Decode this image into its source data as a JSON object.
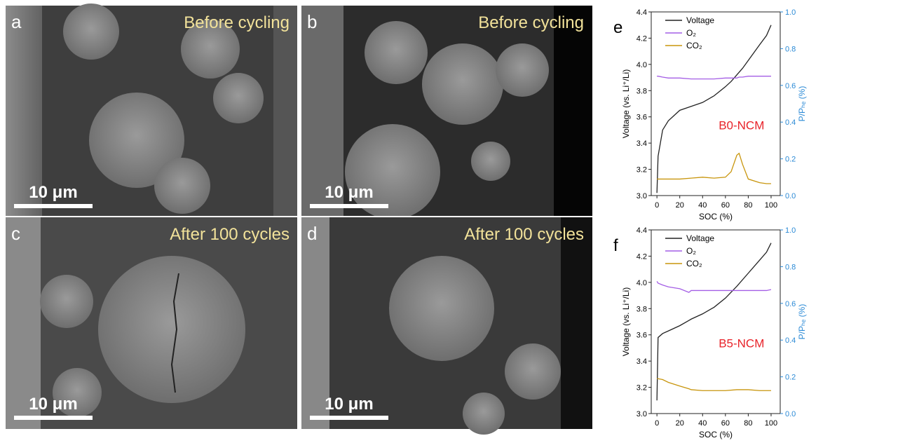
{
  "images": [
    {
      "label": "a",
      "caption": "Before cycling",
      "scale_bar": "10 μm"
    },
    {
      "label": "b",
      "caption": "Before cycling",
      "scale_bar": "10 μm"
    },
    {
      "label": "c",
      "caption": "After 100 cycles",
      "scale_bar": "10 μm"
    },
    {
      "label": "d",
      "caption": "After 100 cycles",
      "scale_bar": "10 μm"
    }
  ],
  "chart_data": [
    {
      "type": "line",
      "panel": "e",
      "annotation": "B0-NCM",
      "xlabel": "SOC (%)",
      "ylabel": "Voltage (vs. Li⁺/Li)",
      "y2label": "P/Pₕₑ (%)",
      "legend": "upper left",
      "x": [
        0,
        1,
        5,
        10,
        20,
        30,
        40,
        50,
        60,
        65,
        70,
        72,
        75,
        80,
        90,
        96,
        100
      ],
      "series": [
        {
          "name": "Voltage",
          "color": "#222222",
          "values": [
            3.02,
            3.3,
            3.5,
            3.57,
            3.65,
            3.68,
            3.71,
            3.76,
            3.83,
            3.87,
            3.92,
            3.94,
            3.97,
            4.03,
            4.15,
            4.22,
            4.3
          ]
        },
        {
          "name": "O₂",
          "color": "#a45ee5",
          "axis": "y2",
          "values": [
            0.65,
            0.65,
            0.645,
            0.64,
            0.64,
            0.635,
            0.635,
            0.635,
            0.64,
            0.64,
            0.64,
            0.645,
            0.645,
            0.65,
            0.65,
            0.65,
            0.65
          ]
        },
        {
          "name": "CO₂",
          "color": "#c8950c",
          "axis": "y2",
          "values": [
            0.09,
            0.09,
            0.09,
            0.09,
            0.09,
            0.095,
            0.1,
            0.095,
            0.1,
            0.13,
            0.22,
            0.23,
            0.17,
            0.09,
            0.07,
            0.065,
            0.065
          ]
        }
      ],
      "xlim": [
        -5,
        108
      ],
      "xticks": [
        0,
        20,
        40,
        60,
        80,
        100
      ],
      "ylim": [
        3.0,
        4.4
      ],
      "yticks": [
        {
          "value": 3.0,
          "label": "3.0"
        },
        3.2,
        3.4,
        3.6,
        3.8,
        {
          "value": 4.0,
          "label": "4.0"
        },
        4.2,
        4.4
      ],
      "y2lim": [
        0,
        1
      ],
      "y2ticks": [
        {
          "value": 0,
          "label": "0.0"
        },
        0.2,
        0.4,
        0.6,
        0.8,
        {
          "value": 1,
          "label": "1.0"
        }
      ],
      "y2color": "#2b8ad6"
    },
    {
      "type": "line",
      "panel": "f",
      "annotation": "B5-NCM",
      "xlabel": "SOC (%)",
      "ylabel": "Voltage (vs. Li⁺/Li)",
      "y2label": "P/Pₕₑ (%)",
      "legend": "upper left",
      "x": [
        0,
        1,
        5,
        10,
        20,
        28,
        30,
        40,
        50,
        60,
        70,
        80,
        90,
        96,
        100
      ],
      "series": [
        {
          "name": "Voltage",
          "color": "#222222",
          "values": [
            3.1,
            3.58,
            3.61,
            3.63,
            3.67,
            3.71,
            3.72,
            3.76,
            3.81,
            3.88,
            3.97,
            4.07,
            4.17,
            4.23,
            4.3
          ]
        },
        {
          "name": "O₂",
          "color": "#a45ee5",
          "axis": "y2",
          "values": [
            0.72,
            0.71,
            0.7,
            0.69,
            0.68,
            0.66,
            0.67,
            0.67,
            0.67,
            0.67,
            0.67,
            0.67,
            0.67,
            0.67,
            0.675
          ]
        },
        {
          "name": "CO₂",
          "color": "#c8950c",
          "axis": "y2",
          "values": [
            0.19,
            0.19,
            0.185,
            0.17,
            0.15,
            0.135,
            0.13,
            0.125,
            0.125,
            0.125,
            0.13,
            0.13,
            0.125,
            0.125,
            0.125
          ]
        }
      ],
      "xlim": [
        -5,
        108
      ],
      "xticks": [
        0,
        20,
        40,
        60,
        80,
        100
      ],
      "ylim": [
        3.0,
        4.4
      ],
      "yticks": [
        {
          "value": 3.0,
          "label": "3.0"
        },
        3.2,
        3.4,
        3.6,
        3.8,
        {
          "value": 4.0,
          "label": "4.0"
        },
        4.2,
        4.4
      ],
      "y2lim": [
        0,
        1
      ],
      "y2ticks": [
        {
          "value": 0,
          "label": "0.0"
        },
        0.2,
        0.4,
        0.6,
        0.8,
        {
          "value": 1,
          "label": "1.0"
        }
      ],
      "y2color": "#2b8ad6"
    }
  ]
}
